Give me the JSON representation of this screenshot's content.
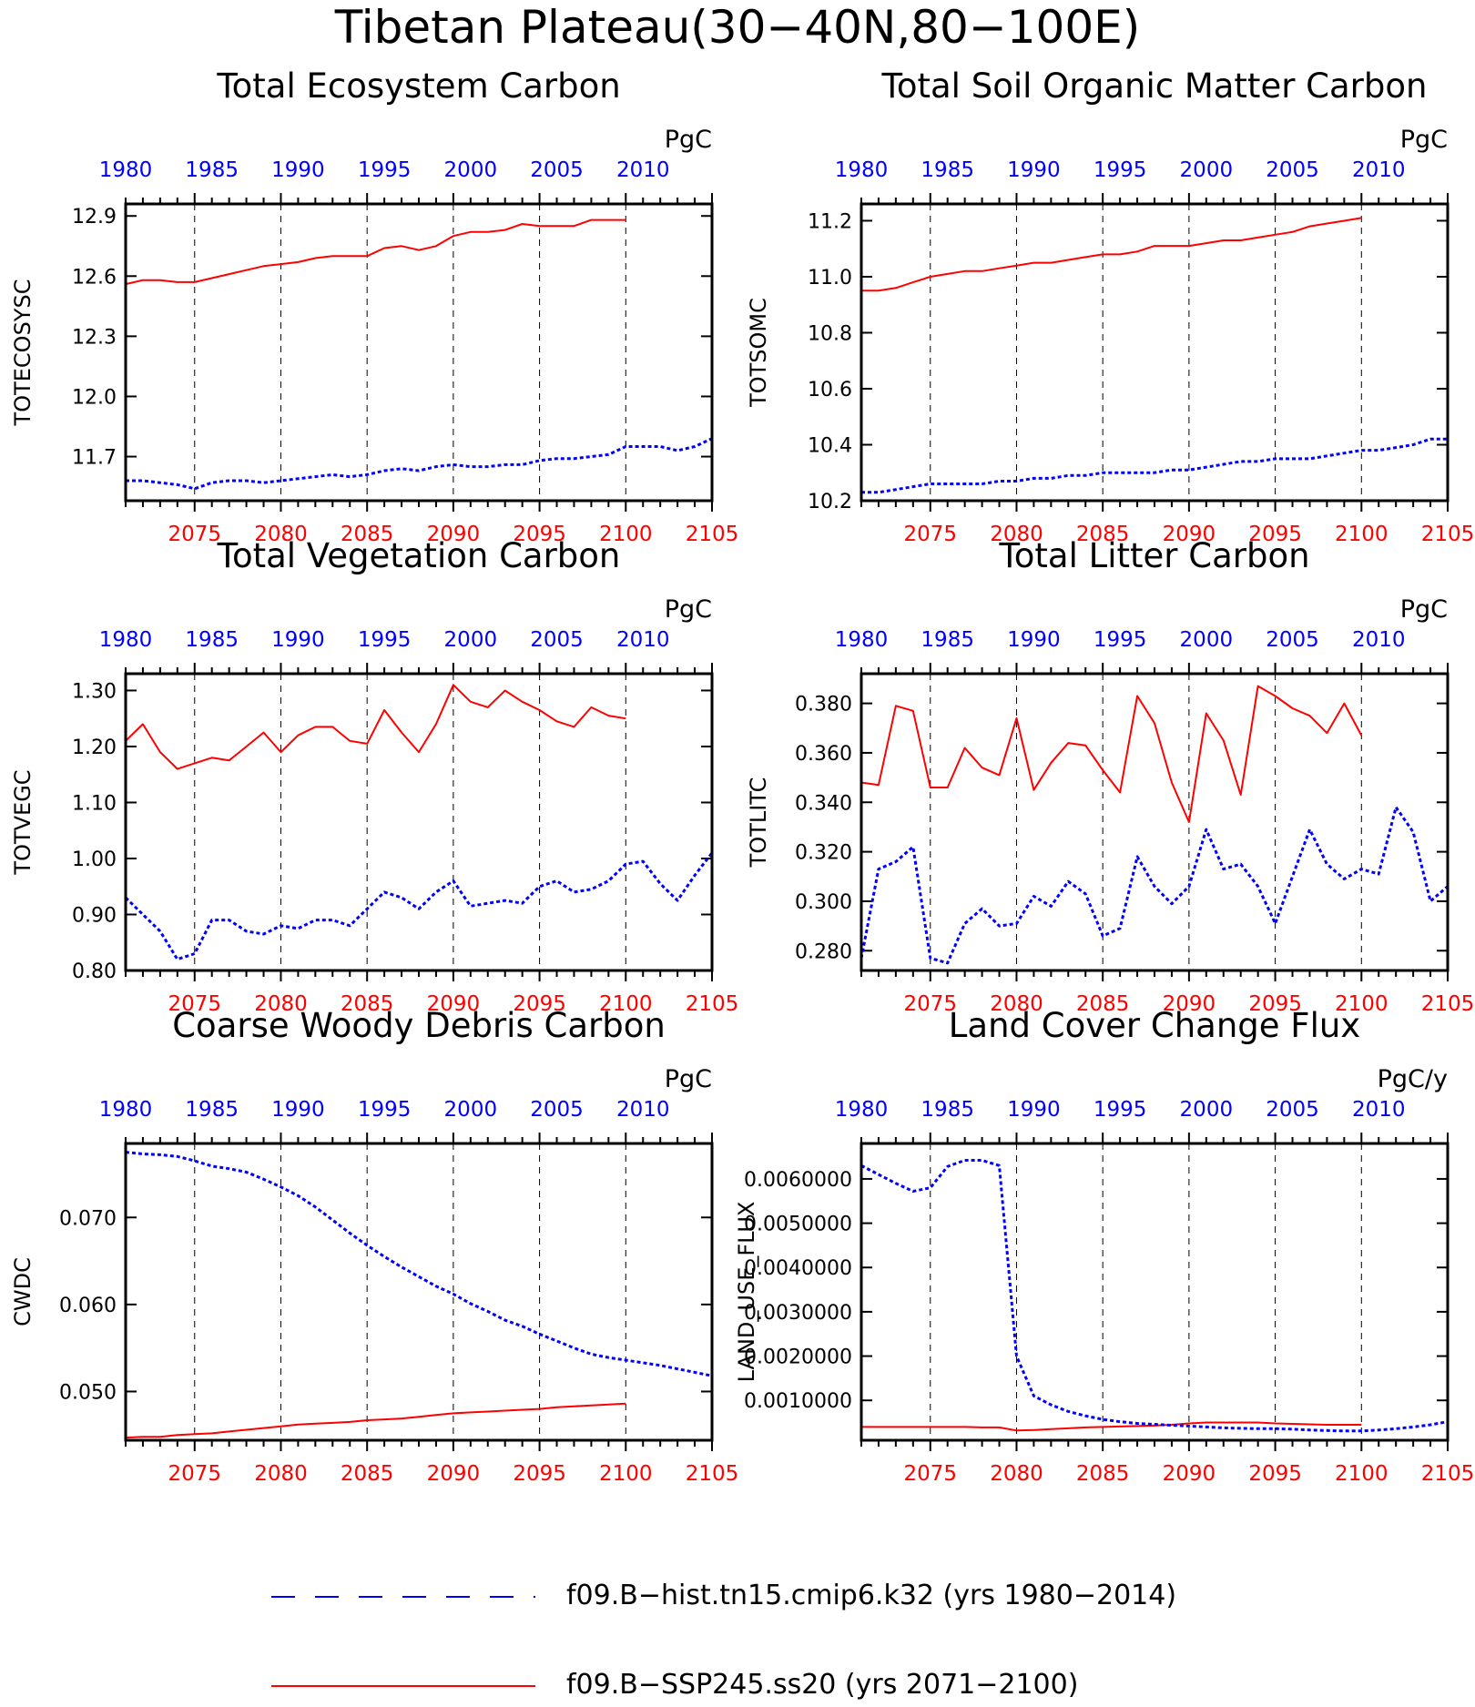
{
  "title": "Tibetan Plateau(30−40N,80−100E)",
  "colors": {
    "hist": "#0000ff",
    "ssp": "#ff0000",
    "axis": "#000000"
  },
  "legend": [
    {
      "name": "f09.B−hist.tn15.cmip6.k32 (yrs 1980−2014)",
      "color": "#0000ff",
      "style": "dash"
    },
    {
      "name": "f09.B−SSP245.ss20 (yrs 2071−2100)",
      "color": "#ff0000",
      "style": "solid"
    }
  ],
  "chart_data": [
    {
      "type": "line",
      "title": "Total Ecosystem Carbon",
      "ylabel": "TOTECOSYSC",
      "unit": "PgC",
      "ylim": [
        11.48,
        12.96
      ],
      "yticks": [
        12.9,
        12.6,
        12.3,
        12.0,
        11.7
      ],
      "ytick_labels": [
        "12.9",
        "12.6",
        "12.3",
        "12.0",
        "11.7"
      ],
      "x_bottom": {
        "range": [
          2071,
          2105
        ],
        "ticks": [
          2075,
          2080,
          2085,
          2090,
          2095,
          2100,
          2105
        ]
      },
      "x_top": {
        "range": [
          1980,
          2014
        ],
        "ticks": [
          1980,
          1985,
          1990,
          1995,
          2000,
          2005,
          2010
        ]
      },
      "grid": "vertical dashed at major ticks",
      "series": [
        {
          "name": "f09.B−SSP245.ss20",
          "axis": "bottom",
          "style": "solid",
          "x_start": 2071,
          "values": [
            12.56,
            12.58,
            12.58,
            12.57,
            12.57,
            12.59,
            12.61,
            12.63,
            12.65,
            12.66,
            12.67,
            12.69,
            12.7,
            12.7,
            12.7,
            12.74,
            12.75,
            12.73,
            12.75,
            12.8,
            12.82,
            12.82,
            12.83,
            12.86,
            12.85,
            12.85,
            12.85,
            12.88,
            12.88,
            12.88
          ]
        },
        {
          "name": "f09.B−hist.tn15.cmip6.k32",
          "axis": "top",
          "style": "dash",
          "x_start": 1980,
          "values": [
            11.58,
            11.58,
            11.57,
            11.56,
            11.54,
            11.57,
            11.58,
            11.58,
            11.57,
            11.58,
            11.59,
            11.6,
            11.61,
            11.6,
            11.61,
            11.63,
            11.64,
            11.63,
            11.65,
            11.66,
            11.65,
            11.65,
            11.66,
            11.66,
            11.68,
            11.69,
            11.69,
            11.7,
            11.71,
            11.75,
            11.75,
            11.75,
            11.73,
            11.75,
            11.79
          ]
        }
      ]
    },
    {
      "type": "line",
      "title": "Total Soil Organic Matter Carbon",
      "ylabel": "TOTSOMC",
      "unit": "PgC",
      "ylim": [
        10.2,
        11.26
      ],
      "yticks": [
        11.2,
        11.0,
        10.8,
        10.6,
        10.4,
        10.2
      ],
      "ytick_labels": [
        "11.2",
        "11.0",
        "10.8",
        "10.6",
        "10.4",
        "10.2"
      ],
      "x_bottom": {
        "range": [
          2071,
          2105
        ],
        "ticks": [
          2075,
          2080,
          2085,
          2090,
          2095,
          2100,
          2105
        ]
      },
      "x_top": {
        "range": [
          1980,
          2014
        ],
        "ticks": [
          1980,
          1985,
          1990,
          1995,
          2000,
          2005,
          2010
        ]
      },
      "grid": "vertical dashed at major ticks",
      "series": [
        {
          "name": "f09.B−SSP245.ss20",
          "axis": "bottom",
          "style": "solid",
          "x_start": 2071,
          "values": [
            10.95,
            10.95,
            10.96,
            10.98,
            11.0,
            11.01,
            11.02,
            11.02,
            11.03,
            11.04,
            11.05,
            11.05,
            11.06,
            11.07,
            11.08,
            11.08,
            11.09,
            11.11,
            11.11,
            11.11,
            11.12,
            11.13,
            11.13,
            11.14,
            11.15,
            11.16,
            11.18,
            11.19,
            11.2,
            11.21
          ]
        },
        {
          "name": "f09.B−hist.tn15.cmip6.k32",
          "axis": "top",
          "style": "dash",
          "x_start": 1980,
          "values": [
            10.23,
            10.23,
            10.24,
            10.25,
            10.26,
            10.26,
            10.26,
            10.26,
            10.27,
            10.27,
            10.28,
            10.28,
            10.29,
            10.29,
            10.3,
            10.3,
            10.3,
            10.3,
            10.31,
            10.31,
            10.32,
            10.33,
            10.34,
            10.34,
            10.35,
            10.35,
            10.35,
            10.36,
            10.37,
            10.38,
            10.38,
            10.39,
            10.4,
            10.42,
            10.42
          ]
        }
      ]
    },
    {
      "type": "line",
      "title": "Total Vegetation Carbon",
      "ylabel": "TOTVEGC",
      "unit": "PgC",
      "ylim": [
        0.8,
        1.33
      ],
      "yticks": [
        1.3,
        1.2,
        1.1,
        1.0,
        0.9,
        0.8
      ],
      "ytick_labels": [
        "1.30",
        "1.20",
        "1.10",
        "1.00",
        "0.90",
        "0.80"
      ],
      "x_bottom": {
        "range": [
          2071,
          2105
        ],
        "ticks": [
          2075,
          2080,
          2085,
          2090,
          2095,
          2100,
          2105
        ]
      },
      "x_top": {
        "range": [
          1980,
          2014
        ],
        "ticks": [
          1980,
          1985,
          1990,
          1995,
          2000,
          2005,
          2010
        ]
      },
      "grid": "vertical dashed at major ticks",
      "series": [
        {
          "name": "f09.B−SSP245.ss20",
          "axis": "bottom",
          "style": "solid",
          "x_start": 2071,
          "values": [
            1.21,
            1.24,
            1.19,
            1.16,
            1.17,
            1.18,
            1.175,
            1.2,
            1.225,
            1.19,
            1.22,
            1.235,
            1.235,
            1.21,
            1.205,
            1.265,
            1.225,
            1.19,
            1.24,
            1.31,
            1.28,
            1.27,
            1.3,
            1.28,
            1.265,
            1.245,
            1.235,
            1.27,
            1.255,
            1.25
          ]
        },
        {
          "name": "f09.B−hist.tn15.cmip6.k32",
          "axis": "top",
          "style": "dash",
          "x_start": 1980,
          "values": [
            0.93,
            0.9,
            0.87,
            0.82,
            0.83,
            0.89,
            0.89,
            0.87,
            0.865,
            0.88,
            0.875,
            0.89,
            0.89,
            0.88,
            0.91,
            0.94,
            0.93,
            0.91,
            0.94,
            0.96,
            0.915,
            0.92,
            0.925,
            0.92,
            0.95,
            0.96,
            0.94,
            0.945,
            0.96,
            0.99,
            0.995,
            0.955,
            0.925,
            0.97,
            1.01
          ]
        }
      ]
    },
    {
      "type": "line",
      "title": "Total Litter Carbon",
      "ylabel": "TOTLITC",
      "unit": "PgC",
      "ylim": [
        0.272,
        0.392
      ],
      "yticks": [
        0.38,
        0.36,
        0.34,
        0.32,
        0.3,
        0.28
      ],
      "ytick_labels": [
        "0.380",
        "0.360",
        "0.340",
        "0.320",
        "0.300",
        "0.280"
      ],
      "x_bottom": {
        "range": [
          2071,
          2105
        ],
        "ticks": [
          2075,
          2080,
          2085,
          2090,
          2095,
          2100,
          2105
        ]
      },
      "x_top": {
        "range": [
          1980,
          2014
        ],
        "ticks": [
          1980,
          1985,
          1990,
          1995,
          2000,
          2005,
          2010
        ]
      },
      "grid": "vertical dashed at major ticks",
      "series": [
        {
          "name": "f09.B−SSP245.ss20",
          "axis": "bottom",
          "style": "solid",
          "x_start": 2071,
          "values": [
            0.348,
            0.347,
            0.379,
            0.377,
            0.346,
            0.346,
            0.362,
            0.354,
            0.351,
            0.374,
            0.345,
            0.356,
            0.364,
            0.363,
            0.353,
            0.344,
            0.383,
            0.372,
            0.348,
            0.332,
            0.376,
            0.365,
            0.343,
            0.387,
            0.383,
            0.378,
            0.375,
            0.368,
            0.38,
            0.367
          ]
        },
        {
          "name": "f09.B−hist.tn15.cmip6.k32",
          "axis": "top",
          "style": "dash",
          "x_start": 1980,
          "values": [
            0.277,
            0.313,
            0.316,
            0.322,
            0.277,
            0.275,
            0.291,
            0.297,
            0.29,
            0.291,
            0.302,
            0.298,
            0.308,
            0.303,
            0.286,
            0.289,
            0.318,
            0.306,
            0.299,
            0.306,
            0.329,
            0.313,
            0.315,
            0.306,
            0.291,
            0.31,
            0.329,
            0.315,
            0.309,
            0.313,
            0.311,
            0.338,
            0.328,
            0.3,
            0.306
          ]
        }
      ]
    },
    {
      "type": "line",
      "title": "Coarse Woody Debris Carbon",
      "ylabel": "CWDC",
      "unit": "PgC",
      "ylim": [
        0.0444,
        0.0785
      ],
      "yticks": [
        0.07,
        0.06,
        0.05
      ],
      "ytick_labels": [
        "0.070",
        "0.060",
        "0.050"
      ],
      "x_bottom": {
        "range": [
          2071,
          2105
        ],
        "ticks": [
          2075,
          2080,
          2085,
          2090,
          2095,
          2100,
          2105
        ]
      },
      "x_top": {
        "range": [
          1980,
          2014
        ],
        "ticks": [
          1980,
          1985,
          1990,
          1995,
          2000,
          2005,
          2010
        ]
      },
      "grid": "vertical dashed at major ticks",
      "series": [
        {
          "name": "f09.B−SSP245.ss20",
          "axis": "bottom",
          "style": "solid",
          "x_start": 2071,
          "values": [
            0.0447,
            0.0448,
            0.0448,
            0.045,
            0.0451,
            0.0452,
            0.0454,
            0.0456,
            0.0458,
            0.046,
            0.0462,
            0.0463,
            0.0464,
            0.0465,
            0.0467,
            0.0468,
            0.0469,
            0.0471,
            0.0473,
            0.0475,
            0.0476,
            0.0477,
            0.0478,
            0.0479,
            0.048,
            0.0482,
            0.0483,
            0.0484,
            0.0485,
            0.0486
          ]
        },
        {
          "name": "f09.B−hist.tn15.cmip6.k32",
          "axis": "top",
          "style": "dash",
          "x_start": 1980,
          "values": [
            0.0775,
            0.0773,
            0.0772,
            0.077,
            0.0765,
            0.0759,
            0.0756,
            0.0752,
            0.0744,
            0.0735,
            0.0725,
            0.0712,
            0.0697,
            0.0682,
            0.0668,
            0.0655,
            0.0643,
            0.0632,
            0.0621,
            0.0612,
            0.0601,
            0.0592,
            0.0582,
            0.0575,
            0.0566,
            0.0558,
            0.055,
            0.0543,
            0.0539,
            0.0536,
            0.0533,
            0.053,
            0.0526,
            0.0522,
            0.0518
          ]
        }
      ]
    },
    {
      "type": "line",
      "title": "Land Cover Change Flux",
      "ylabel": "LAND_USE_FLUX",
      "unit": "PgC/y",
      "ylim": [
        0.0001,
        0.0068
      ],
      "yticks": [
        0.006,
        0.005,
        0.004,
        0.003,
        0.002,
        0.001
      ],
      "ytick_labels": [
        "0.0060000",
        "0.0050000",
        "0.0040000",
        "0.0030000",
        "0.0020000",
        "0.0010000"
      ],
      "x_bottom": {
        "range": [
          2071,
          2105
        ],
        "ticks": [
          2075,
          2080,
          2085,
          2090,
          2095,
          2100,
          2105
        ]
      },
      "x_top": {
        "range": [
          1980,
          2014
        ],
        "ticks": [
          1980,
          1985,
          1990,
          1995,
          2000,
          2005,
          2010
        ]
      },
      "grid": "vertical dashed at major ticks",
      "series": [
        {
          "name": "f09.B−SSP245.ss20",
          "axis": "bottom",
          "style": "solid",
          "x_start": 2071,
          "values": [
            0.0004,
            0.0004,
            0.0004,
            0.0004,
            0.0004,
            0.0004,
            0.0004,
            0.00039,
            0.00039,
            0.00032,
            0.00033,
            0.00035,
            0.00037,
            0.00039,
            0.0004,
            0.00041,
            0.00042,
            0.00043,
            0.00045,
            0.00048,
            0.0005,
            0.0005,
            0.0005,
            0.0005,
            0.00048,
            0.00047,
            0.00046,
            0.00045,
            0.00045,
            0.00045
          ]
        },
        {
          "name": "f09.B−hist.tn15.cmip6.k32",
          "axis": "top",
          "style": "dash",
          "x_start": 1980,
          "values": [
            0.0063,
            0.0061,
            0.0059,
            0.00572,
            0.0058,
            0.00628,
            0.00642,
            0.00642,
            0.0063,
            0.002,
            0.0011,
            0.0009,
            0.00075,
            0.00065,
            0.00057,
            0.00052,
            0.00048,
            0.00046,
            0.00044,
            0.00042,
            0.0004,
            0.00038,
            0.00037,
            0.00036,
            0.00036,
            0.00035,
            0.00033,
            0.00032,
            0.00031,
            0.00031,
            0.00033,
            0.00036,
            0.0004,
            0.00045,
            0.00052
          ]
        }
      ]
    }
  ]
}
